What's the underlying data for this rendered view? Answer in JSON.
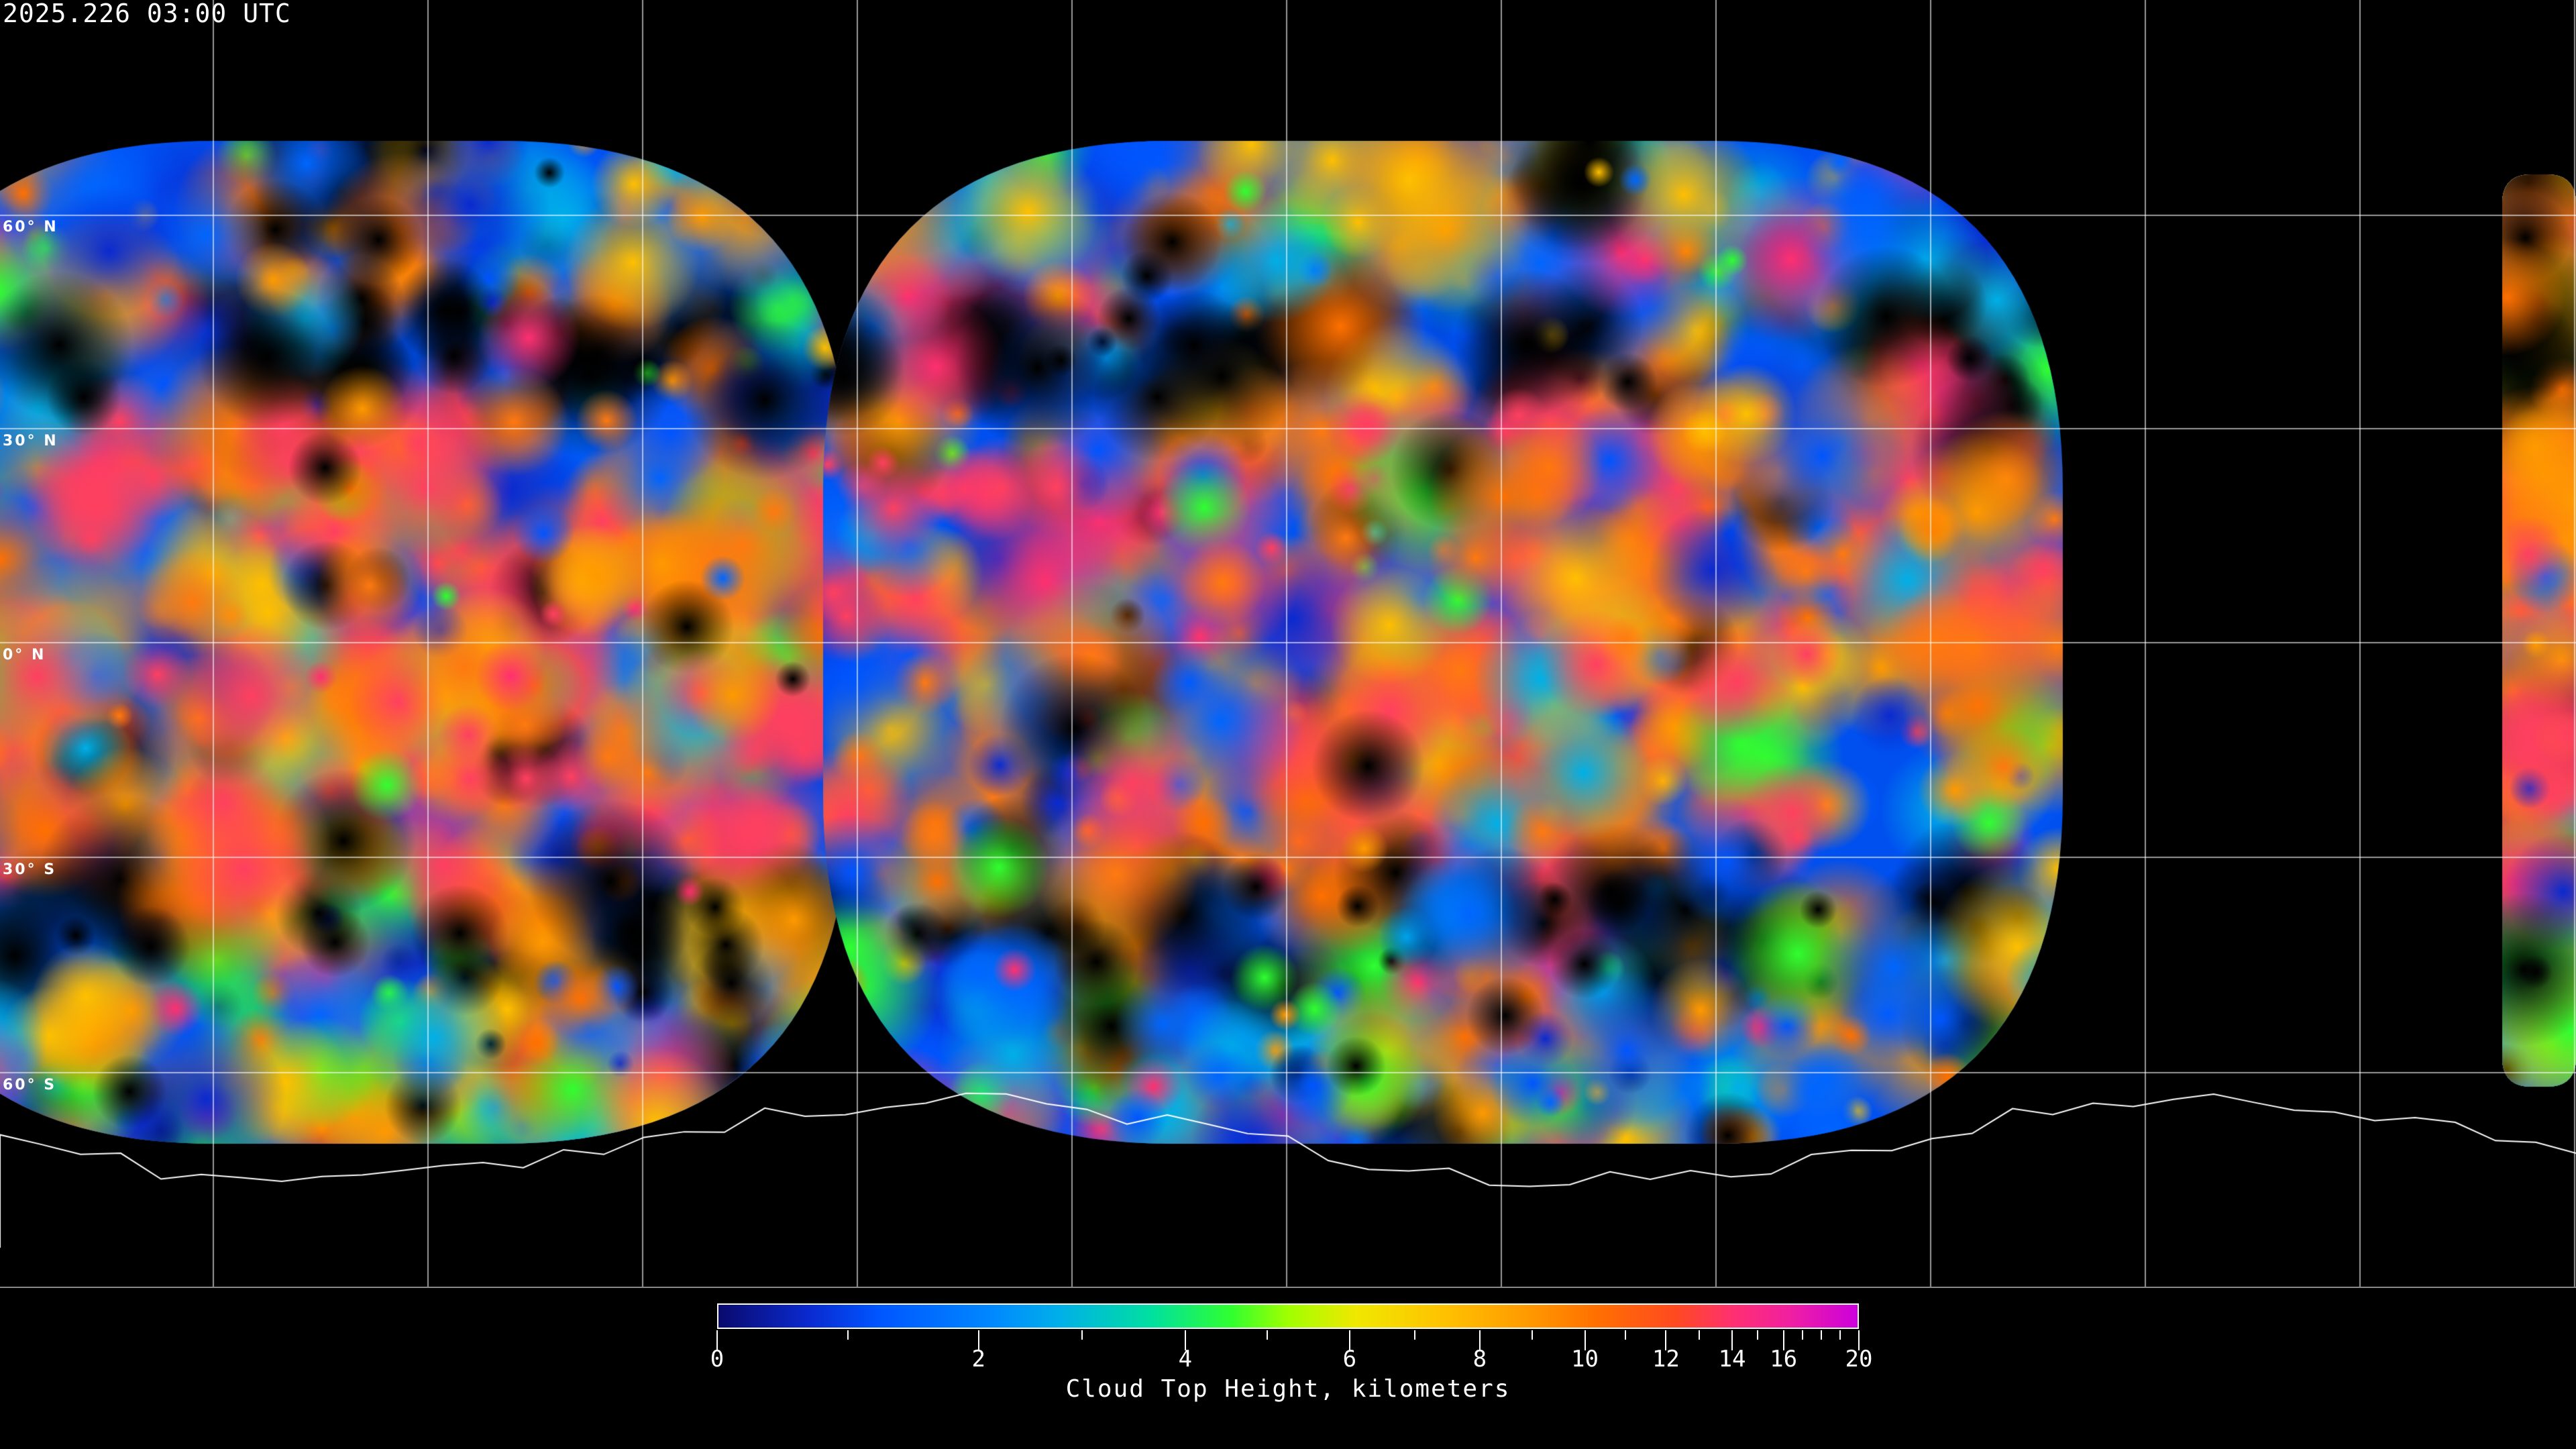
{
  "title": "2025.226 03:00 UTC",
  "map": {
    "projection": "equirectangular",
    "background": "#000000",
    "gridline_color": "#ffffff",
    "coastline_color": "#ffffff",
    "longitude_grid_step_deg": 30,
    "latitude_labels": [
      "60° N",
      "30° N",
      "0° N",
      "30° S",
      "60° S"
    ]
  },
  "colorbar": {
    "title": "Cloud Top Height, kilometers",
    "min": 0,
    "max": 20,
    "tick_labels": [
      "0",
      "2",
      "4",
      "6",
      "8",
      "10",
      "12",
      "14",
      "16",
      "20"
    ],
    "minor_ticks": [
      1,
      3,
      5,
      7,
      9,
      11,
      13,
      15,
      17,
      18,
      19
    ],
    "colors": [
      "#0a0a6e",
      "#0055ff",
      "#00b0e8",
      "#30ff30",
      "#f0e800",
      "#ff9a00",
      "#ff4a20",
      "#ff3070",
      "#cc00dd"
    ]
  }
}
